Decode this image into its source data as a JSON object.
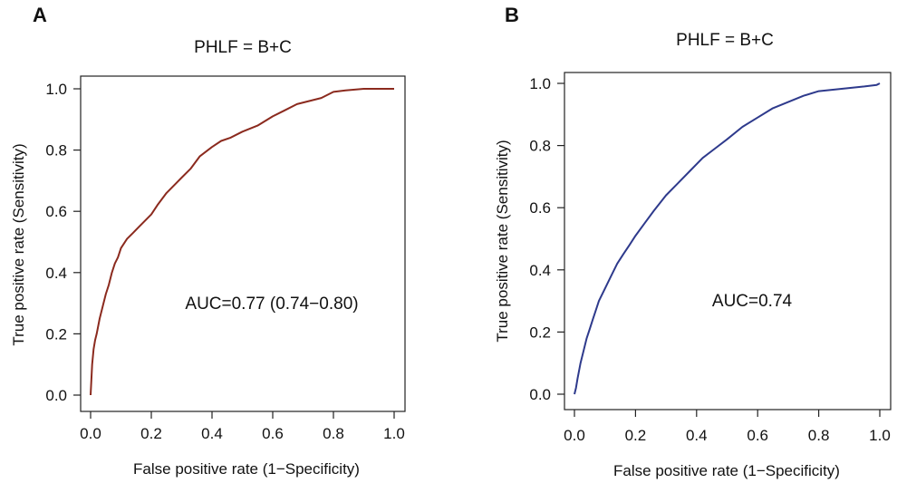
{
  "chart_data": [
    {
      "type": "line",
      "panel_label": "A",
      "title": "PHLF = B+C",
      "xlabel": "False positive rate (1−Specificity)",
      "ylabel": "True positive rate (Sensitivity)",
      "xlim": [
        0,
        1
      ],
      "ylim": [
        0,
        1
      ],
      "x_ticks": [
        "0.0",
        "0.2",
        "0.4",
        "0.6",
        "0.8",
        "1.0"
      ],
      "y_ticks": [
        "0.0",
        "0.2",
        "0.4",
        "0.6",
        "0.8",
        "1.0"
      ],
      "annotation": "AUC=0.77 (0.74−0.80)",
      "grid": false,
      "series": [
        {
          "color": "#8b2a1e",
          "x": [
            0,
            0.005,
            0.01,
            0.015,
            0.02,
            0.03,
            0.04,
            0.05,
            0.06,
            0.07,
            0.08,
            0.09,
            0.1,
            0.12,
            0.14,
            0.16,
            0.18,
            0.2,
            0.22,
            0.25,
            0.28,
            0.3,
            0.33,
            0.36,
            0.4,
            0.43,
            0.46,
            0.5,
            0.55,
            0.6,
            0.64,
            0.68,
            0.72,
            0.76,
            0.8,
            0.84,
            0.9,
            0.95,
            1.0
          ],
          "y": [
            0,
            0.1,
            0.15,
            0.18,
            0.2,
            0.25,
            0.29,
            0.33,
            0.36,
            0.4,
            0.43,
            0.45,
            0.48,
            0.51,
            0.53,
            0.55,
            0.57,
            0.59,
            0.62,
            0.66,
            0.69,
            0.71,
            0.74,
            0.78,
            0.81,
            0.83,
            0.84,
            0.86,
            0.88,
            0.91,
            0.93,
            0.95,
            0.96,
            0.97,
            0.99,
            0.995,
            1.0,
            1.0,
            1.0
          ]
        }
      ]
    },
    {
      "type": "line",
      "panel_label": "B",
      "title": "PHLF = B+C",
      "xlabel": "False positive rate (1−Specificity)",
      "ylabel": "True positive rate (Sensitivity)",
      "xlim": [
        0,
        1
      ],
      "ylim": [
        0,
        1
      ],
      "x_ticks": [
        "0.0",
        "0.2",
        "0.4",
        "0.6",
        "0.8",
        "1.0"
      ],
      "y_ticks": [
        "0.0",
        "0.2",
        "0.4",
        "0.6",
        "0.8",
        "1.0"
      ],
      "annotation": "AUC=0.74",
      "grid": false,
      "series": [
        {
          "color": "#2e3a8c",
          "x": [
            0,
            0.005,
            0.01,
            0.02,
            0.03,
            0.04,
            0.05,
            0.06,
            0.07,
            0.08,
            0.1,
            0.12,
            0.14,
            0.16,
            0.18,
            0.2,
            0.23,
            0.26,
            0.3,
            0.34,
            0.38,
            0.42,
            0.46,
            0.5,
            0.55,
            0.6,
            0.65,
            0.7,
            0.75,
            0.8,
            0.85,
            0.9,
            0.95,
            0.99,
            1.0
          ],
          "y": [
            0,
            0.02,
            0.05,
            0.1,
            0.14,
            0.18,
            0.21,
            0.24,
            0.27,
            0.3,
            0.34,
            0.38,
            0.42,
            0.45,
            0.48,
            0.51,
            0.55,
            0.59,
            0.64,
            0.68,
            0.72,
            0.76,
            0.79,
            0.82,
            0.86,
            0.89,
            0.92,
            0.94,
            0.96,
            0.975,
            0.98,
            0.985,
            0.99,
            0.995,
            1.0
          ]
        }
      ]
    }
  ]
}
